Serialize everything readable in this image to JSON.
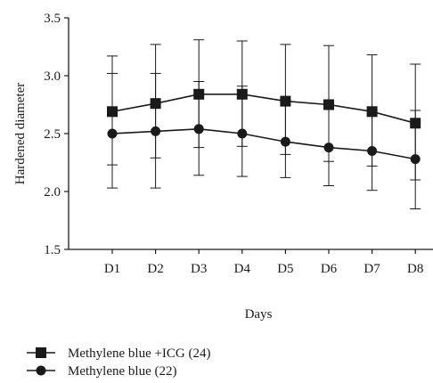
{
  "chart_data": {
    "type": "line",
    "title": "",
    "xlabel": "Days",
    "ylabel": "Hardened diameter",
    "categories": [
      "D1",
      "D2",
      "D3",
      "D4",
      "D5",
      "D6",
      "D7",
      "D8"
    ],
    "ylim": [
      1.5,
      3.5
    ],
    "yticks": [
      "1.5",
      "2.0",
      "2.5",
      "3.0",
      "3.5"
    ],
    "grid": false,
    "legend_position": "bottom",
    "series": [
      {
        "name": "Methylene blue +ICG (24)",
        "marker": "square",
        "color": "#1a1a1a",
        "values": [
          2.69,
          2.76,
          2.84,
          2.84,
          2.78,
          2.75,
          2.69,
          2.59
        ],
        "error_upper": [
          3.17,
          3.27,
          3.31,
          3.3,
          3.27,
          3.26,
          3.18,
          3.1
        ],
        "error_lower": [
          2.23,
          2.29,
          2.38,
          2.39,
          2.32,
          2.26,
          2.22,
          2.1
        ]
      },
      {
        "name": "Methylene blue (22)",
        "marker": "circle",
        "color": "#1a1a1a",
        "values": [
          2.5,
          2.52,
          2.54,
          2.5,
          2.43,
          2.38,
          2.35,
          2.28
        ],
        "error_upper": [
          3.02,
          3.02,
          2.95,
          2.91,
          2.79,
          2.76,
          2.7,
          2.7
        ],
        "error_lower": [
          2.03,
          2.03,
          2.14,
          2.13,
          2.12,
          2.05,
          2.01,
          1.85
        ]
      }
    ]
  }
}
